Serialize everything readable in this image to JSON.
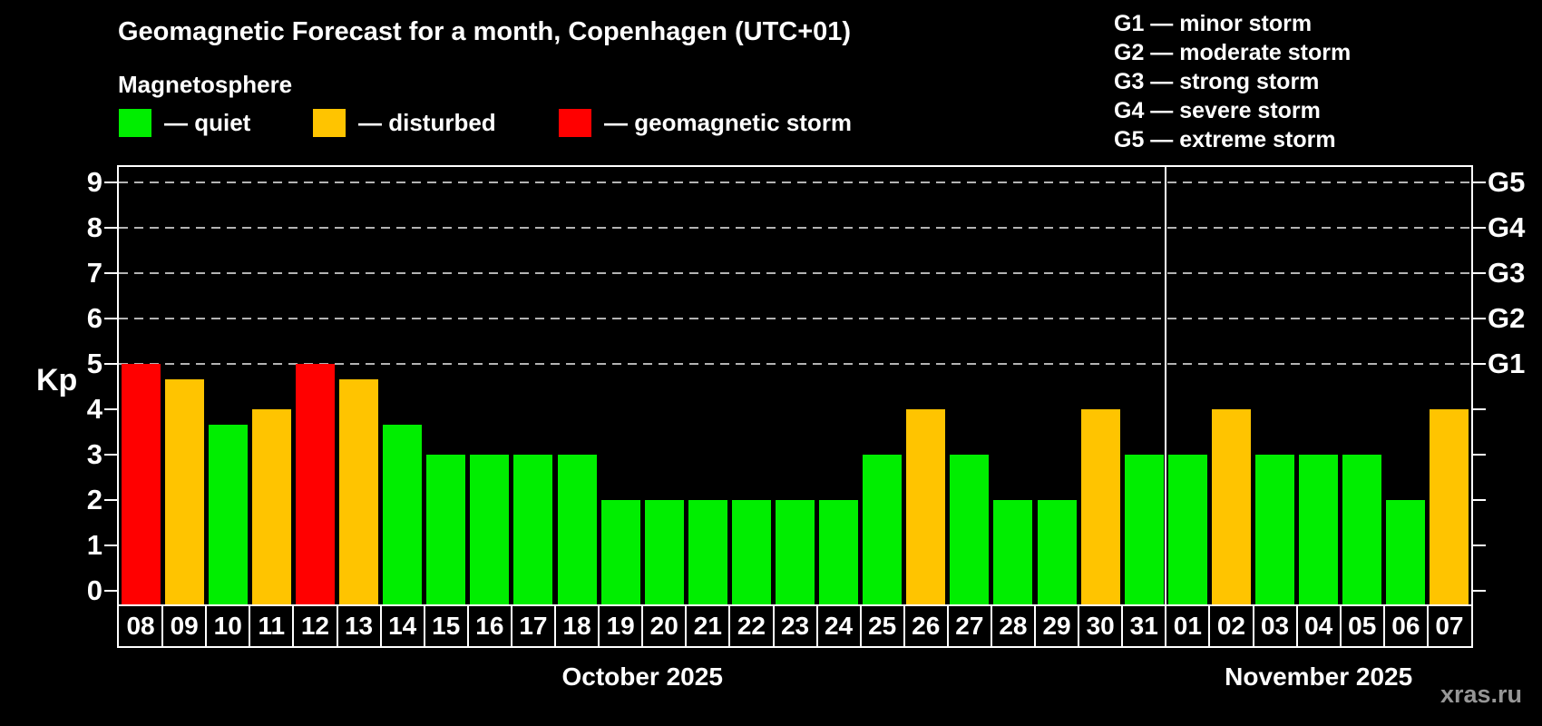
{
  "title": "Geomagnetic Forecast for a month, Copenhagen (UTC+01)",
  "subtitle": "Magnetosphere",
  "legend": {
    "quiet_label": "— quiet",
    "disturbed_label": "— disturbed",
    "storm_label": "— geomagnetic storm"
  },
  "g_legend": [
    "G1 — minor storm",
    "G2 — moderate storm",
    "G3 — strong storm",
    "G4 — severe storm",
    "G5 — extreme storm"
  ],
  "watermark": "xras.ru",
  "chart_data": {
    "type": "bar",
    "ylabel": "Kp",
    "ylim": [
      0,
      9
    ],
    "y_ticks": [
      0,
      1,
      2,
      3,
      4,
      5,
      6,
      7,
      8,
      9
    ],
    "gridlines_kp": [
      5,
      6,
      7,
      8,
      9
    ],
    "right_axis_labels": [
      {
        "kp": 5,
        "label": "G1"
      },
      {
        "kp": 6,
        "label": "G2"
      },
      {
        "kp": 7,
        "label": "G3"
      },
      {
        "kp": 8,
        "label": "G4"
      },
      {
        "kp": 9,
        "label": "G5"
      }
    ],
    "status_colors": {
      "quiet": "#00ee00",
      "disturbed": "#ffc400",
      "storm": "#ff0000"
    },
    "months": [
      {
        "label": "October 2025",
        "days": [
          {
            "day": "08",
            "kp": 5.0,
            "status": "storm"
          },
          {
            "day": "09",
            "kp": 4.67,
            "status": "disturbed"
          },
          {
            "day": "10",
            "kp": 3.67,
            "status": "quiet"
          },
          {
            "day": "11",
            "kp": 4.0,
            "status": "disturbed"
          },
          {
            "day": "12",
            "kp": 5.0,
            "status": "storm"
          },
          {
            "day": "13",
            "kp": 4.67,
            "status": "disturbed"
          },
          {
            "day": "14",
            "kp": 3.67,
            "status": "quiet"
          },
          {
            "day": "15",
            "kp": 3.0,
            "status": "quiet"
          },
          {
            "day": "16",
            "kp": 3.0,
            "status": "quiet"
          },
          {
            "day": "17",
            "kp": 3.0,
            "status": "quiet"
          },
          {
            "day": "18",
            "kp": 3.0,
            "status": "quiet"
          },
          {
            "day": "19",
            "kp": 2.0,
            "status": "quiet"
          },
          {
            "day": "20",
            "kp": 2.0,
            "status": "quiet"
          },
          {
            "day": "21",
            "kp": 2.0,
            "status": "quiet"
          },
          {
            "day": "22",
            "kp": 2.0,
            "status": "quiet"
          },
          {
            "day": "23",
            "kp": 2.0,
            "status": "quiet"
          },
          {
            "day": "24",
            "kp": 2.0,
            "status": "quiet"
          },
          {
            "day": "25",
            "kp": 3.0,
            "status": "quiet"
          },
          {
            "day": "26",
            "kp": 4.0,
            "status": "disturbed"
          },
          {
            "day": "27",
            "kp": 3.0,
            "status": "quiet"
          },
          {
            "day": "28",
            "kp": 2.0,
            "status": "quiet"
          },
          {
            "day": "29",
            "kp": 2.0,
            "status": "quiet"
          },
          {
            "day": "30",
            "kp": 4.0,
            "status": "disturbed"
          },
          {
            "day": "31",
            "kp": 3.0,
            "status": "quiet"
          }
        ]
      },
      {
        "label": "November 2025",
        "days": [
          {
            "day": "01",
            "kp": 3.0,
            "status": "quiet"
          },
          {
            "day": "02",
            "kp": 4.0,
            "status": "disturbed"
          },
          {
            "day": "03",
            "kp": 3.0,
            "status": "quiet"
          },
          {
            "day": "04",
            "kp": 3.0,
            "status": "quiet"
          },
          {
            "day": "05",
            "kp": 3.0,
            "status": "quiet"
          },
          {
            "day": "06",
            "kp": 2.0,
            "status": "quiet"
          },
          {
            "day": "07",
            "kp": 4.0,
            "status": "disturbed"
          }
        ]
      }
    ]
  }
}
